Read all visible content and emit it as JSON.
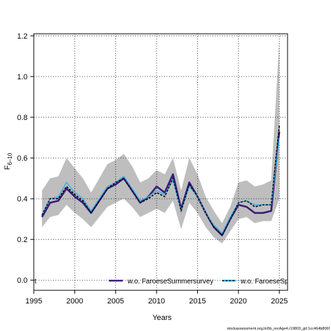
{
  "chart_data": {
    "type": "line",
    "xlabel": "Years",
    "ylabel_main": "F",
    "ylabel_sub": "6–10",
    "xlim": [
      1995,
      2026
    ],
    "ylim": [
      -0.05,
      1.21
    ],
    "xticks": [
      1995,
      2000,
      2005,
      2010,
      2015,
      2020,
      2025
    ],
    "yticks": [
      0.0,
      0.2,
      0.4,
      0.6,
      0.8,
      1.0,
      1.2
    ],
    "ytick_labels": [
      "0.0",
      "0.2",
      "0.4",
      "0.6",
      "0.8",
      "1.0",
      "1.2"
    ],
    "grid": true,
    "years": [
      1996,
      1997,
      1998,
      1999,
      2000,
      2001,
      2002,
      2003,
      2004,
      2005,
      2006,
      2007,
      2008,
      2009,
      2010,
      2011,
      2012,
      2013,
      2014,
      2015,
      2016,
      2017,
      2018,
      2019,
      2020,
      2021,
      2022,
      2023,
      2024,
      2025
    ],
    "band": {
      "color": "#bebebe",
      "upper": [
        0.44,
        0.5,
        0.51,
        0.6,
        0.55,
        0.5,
        0.43,
        0.5,
        0.57,
        0.59,
        0.62,
        0.56,
        0.48,
        0.5,
        0.54,
        0.52,
        0.6,
        0.44,
        0.6,
        0.52,
        0.41,
        0.34,
        0.28,
        0.36,
        0.48,
        0.49,
        0.46,
        0.47,
        0.49,
        1.18
      ],
      "lower": [
        0.26,
        0.31,
        0.32,
        0.37,
        0.33,
        0.3,
        0.26,
        0.31,
        0.36,
        0.38,
        0.4,
        0.36,
        0.31,
        0.33,
        0.35,
        0.33,
        0.39,
        0.25,
        0.38,
        0.33,
        0.26,
        0.21,
        0.18,
        0.24,
        0.3,
        0.31,
        0.28,
        0.29,
        0.29,
        0.4
      ]
    },
    "series": [
      {
        "name": "",
        "color": "#000000",
        "dash": "3,2",
        "width": 1.6,
        "values": [
          0.32,
          0.4,
          0.4,
          0.46,
          0.42,
          0.39,
          0.33,
          0.39,
          0.45,
          0.48,
          0.5,
          0.44,
          0.38,
          0.4,
          0.43,
          0.41,
          0.5,
          0.34,
          0.47,
          0.41,
          0.33,
          0.26,
          0.22,
          0.3,
          0.38,
          0.39,
          0.36,
          0.37,
          0.37,
          0.76
        ]
      },
      {
        "name": "w.o. FaroeseSummersurvey",
        "color": "#3a1a78",
        "dash": "",
        "width": 2.6,
        "values": [
          0.31,
          0.38,
          0.39,
          0.45,
          0.41,
          0.38,
          0.33,
          0.39,
          0.45,
          0.47,
          0.5,
          0.44,
          0.38,
          0.41,
          0.46,
          0.43,
          0.52,
          0.35,
          0.48,
          0.41,
          0.33,
          0.26,
          0.22,
          0.3,
          0.37,
          0.36,
          0.33,
          0.33,
          0.34,
          0.73
        ]
      },
      {
        "name": "w.o. FaroeseSp",
        "color": "#2fb0e6",
        "dash": "",
        "width": 1.4,
        "values": [
          0.32,
          0.4,
          0.41,
          0.48,
          0.43,
          0.4,
          0.34,
          0.4,
          0.46,
          0.48,
          0.51,
          0.45,
          0.39,
          0.41,
          0.44,
          0.42,
          0.49,
          0.34,
          0.46,
          0.41,
          0.33,
          0.27,
          0.23,
          0.31,
          0.38,
          0.39,
          0.37,
          0.37,
          0.37,
          0.7
        ]
      }
    ],
    "legend": {
      "placement": "bottom",
      "left_text": "t",
      "entries": [
        "w.o. FaroeseSummersurvey",
        "w.o. FaroeseSp"
      ]
    }
  },
  "watermark": "stockassessment.org,lin5b_recAge4.r19803_git:1cc464b806f"
}
